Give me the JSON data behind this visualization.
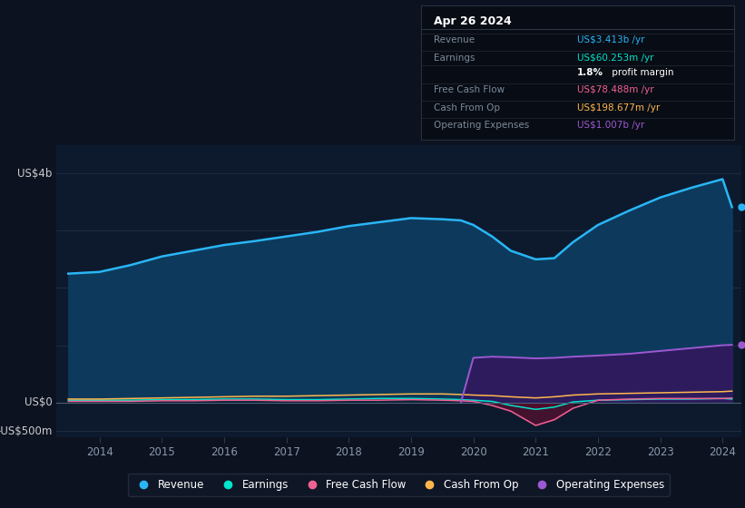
{
  "background_color": "#0c1220",
  "plot_bg_color": "#0d1a2e",
  "years_raw": [
    2013.5,
    2014.0,
    2014.5,
    2015.0,
    2015.5,
    2016.0,
    2016.5,
    2017.0,
    2017.5,
    2018.0,
    2018.5,
    2019.0,
    2019.5,
    2019.8,
    2020.0,
    2020.3,
    2020.6,
    2021.0,
    2021.3,
    2021.6,
    2022.0,
    2022.5,
    2023.0,
    2023.5,
    2024.0,
    2024.15
  ],
  "revenue": [
    2.25,
    2.28,
    2.4,
    2.55,
    2.65,
    2.75,
    2.82,
    2.9,
    2.98,
    3.08,
    3.15,
    3.22,
    3.2,
    3.18,
    3.1,
    2.9,
    2.65,
    2.5,
    2.52,
    2.8,
    3.1,
    3.35,
    3.58,
    3.75,
    3.9,
    3.413
  ],
  "earnings": [
    0.04,
    0.04,
    0.04,
    0.05,
    0.05,
    0.06,
    0.06,
    0.05,
    0.05,
    0.06,
    0.07,
    0.07,
    0.06,
    0.05,
    0.04,
    0.02,
    -0.05,
    -0.12,
    -0.08,
    0.01,
    0.04,
    0.05,
    0.06,
    0.06,
    0.07,
    0.06
  ],
  "free_cash_flow": [
    0.02,
    0.02,
    0.02,
    0.03,
    0.03,
    0.04,
    0.04,
    0.03,
    0.03,
    0.04,
    0.04,
    0.05,
    0.04,
    0.03,
    0.02,
    -0.05,
    -0.15,
    -0.4,
    -0.3,
    -0.1,
    0.04,
    0.06,
    0.07,
    0.07,
    0.07,
    0.078
  ],
  "cash_from_op": [
    0.06,
    0.06,
    0.07,
    0.08,
    0.09,
    0.1,
    0.11,
    0.11,
    0.12,
    0.13,
    0.14,
    0.15,
    0.15,
    0.14,
    0.13,
    0.12,
    0.1,
    0.08,
    0.1,
    0.13,
    0.15,
    0.16,
    0.17,
    0.18,
    0.19,
    0.199
  ],
  "op_expenses_x": [
    2019.8,
    2020.0,
    2020.3,
    2020.6,
    2021.0,
    2021.3,
    2021.6,
    2022.0,
    2022.5,
    2023.0,
    2023.5,
    2024.0,
    2024.15
  ],
  "op_expenses": [
    0.0,
    0.78,
    0.8,
    0.79,
    0.77,
    0.78,
    0.8,
    0.82,
    0.85,
    0.9,
    0.95,
    1.0,
    1.007
  ],
  "ylim": [
    -0.6,
    4.5
  ],
  "y_us4b": 4.0,
  "y_us0": 0.0,
  "y_neg500m": -0.5,
  "xticks": [
    2014,
    2015,
    2016,
    2017,
    2018,
    2019,
    2020,
    2021,
    2022,
    2023,
    2024
  ],
  "revenue_color": "#29b6f6",
  "revenue_fill": "#0d3a5c",
  "earnings_color": "#00e5cc",
  "earnings_fill": "#004d44",
  "fcf_color": "#f06292",
  "cashop_color": "#ffb74d",
  "opex_color": "#9c59d1",
  "opex_fill": "#2d1b5e",
  "grid_color": "#1e3048",
  "zero_color": "#4a6070",
  "info_box_bg": "#080c14",
  "info_box_border": "#2a3040",
  "legend_bg": "#111827",
  "legend_border": "#2a3040",
  "legend_items": [
    {
      "label": "Revenue",
      "color": "#29b6f6"
    },
    {
      "label": "Earnings",
      "color": "#00e5cc"
    },
    {
      "label": "Free Cash Flow",
      "color": "#f06292"
    },
    {
      "label": "Cash From Op",
      "color": "#ffb74d"
    },
    {
      "label": "Operating Expenses",
      "color": "#9c59d1"
    }
  ],
  "info_date": "Apr 26 2024",
  "info_rows": [
    {
      "label": "Revenue",
      "value": "US$3.413b /yr",
      "value_color": "#29b6f6"
    },
    {
      "label": "Earnings",
      "value": "US$60.253m /yr",
      "value_color": "#00e5cc"
    },
    {
      "label": "",
      "value": "1.8%",
      "value2": " profit margin",
      "value_color": "#ffffff"
    },
    {
      "label": "Free Cash Flow",
      "value": "US$78.488m /yr",
      "value_color": "#f06292"
    },
    {
      "label": "Cash From Op",
      "value": "US$198.677m /yr",
      "value_color": "#ffb74d"
    },
    {
      "label": "Operating Expenses",
      "value": "US$1.007b /yr",
      "value_color": "#9c59d1"
    }
  ]
}
